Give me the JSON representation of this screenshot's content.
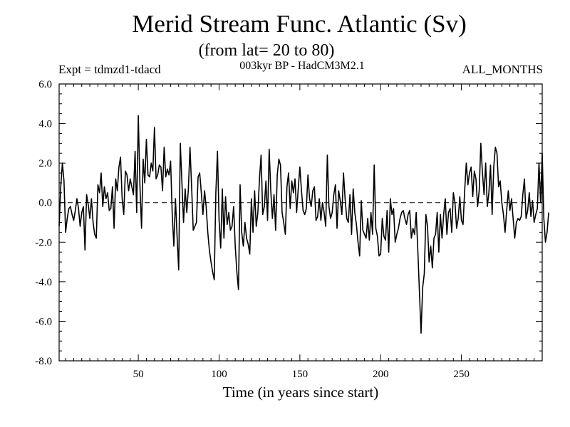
{
  "header": {
    "title": "Merid Stream Func. Atlantic (Sv)",
    "subtitle": "(from lat= 20 to 80)",
    "experiment": "Expt = tdmzd1-tdacd",
    "model": "003kyr BP - HadCM3M2.1",
    "months": "ALL_MONTHS"
  },
  "chart_data": {
    "type": "line",
    "title": "Merid Stream Func. Atlantic (Sv)",
    "xlabel": "Time (in years since start)",
    "ylabel": "",
    "xlim": [
      1,
      300
    ],
    "ylim": [
      -8,
      6
    ],
    "x_ticks": [
      50,
      100,
      150,
      200,
      250
    ],
    "y_ticks": [
      6,
      4,
      2,
      0,
      -2,
      -4,
      -6,
      -8
    ],
    "y_tick_labels": [
      "6.0",
      "4.0",
      "2.0",
      "0.0",
      "-2.0",
      "-4.0",
      "-6.0",
      "-8.0"
    ],
    "reference_line": {
      "y": 0,
      "style": "dashed"
    },
    "grid": false,
    "x_start": 1,
    "x_step": 1,
    "values": [
      -1.2,
      0.8,
      2.0,
      1.1,
      -1.5,
      -0.8,
      -0.3,
      -0.2,
      -0.6,
      -0.9,
      -0.4,
      0.2,
      -0.3,
      -1.2,
      -0.5,
      -0.2,
      -2.4,
      0.4,
      -0.1,
      -0.8,
      0.2,
      -1.0,
      -1.6,
      -1.8,
      0.9,
      0.5,
      1.5,
      -0.2,
      0.8,
      0.2,
      0.5,
      -0.4,
      -0.3,
      0.8,
      -1.3,
      1.2,
      0.6,
      1.8,
      2.3,
      0.2,
      -0.6,
      1.6,
      1.4,
      0.6,
      1.2,
      0.8,
      0.4,
      2.6,
      -0.5,
      4.4,
      0.9,
      -1.3,
      2.2,
      1.0,
      3.2,
      1.4,
      1.3,
      2.0,
      1.6,
      3.8,
      1.2,
      1.4,
      1.9,
      1.8,
      0.6,
      2.8,
      1.3,
      1.7,
      1.4,
      2.1,
      -0.6,
      -2.2,
      0.2,
      -1.7,
      -3.4,
      3.0,
      1.0,
      -1.0,
      0.7,
      -0.5,
      0.7,
      2.8,
      0.8,
      -1.4,
      -1.2,
      -1.0,
      1.3,
      1.5,
      0.5,
      -0.6,
      0.6,
      -0.2,
      -1.5,
      -2.4,
      -3.0,
      -3.5,
      -3.9,
      0.5,
      2.6,
      -0.9,
      -2.3,
      0.7,
      -1.8,
      0.3,
      -1.1,
      -0.5,
      -1.4,
      -1.2,
      -0.2,
      -2.2,
      -3.5,
      -4.4,
      0.9,
      -1.5,
      -2.2,
      -1.0,
      -1.8,
      -2.1,
      -2.6,
      0.2,
      -1.5,
      0.6,
      -1.2,
      -0.5,
      1.2,
      2.4,
      -0.6,
      -0.2,
      1.1,
      -0.9,
      2.7,
      0.6,
      -0.8,
      0.4,
      -1.4,
      1.4,
      2.2,
      1.9,
      -0.5,
      -1.0,
      -1.6,
      0.8,
      1.5,
      -0.3,
      1.1,
      0.5,
      1.2,
      -0.5,
      0.7,
      1.8,
      0.6,
      -0.4,
      -0.6,
      -0.3,
      1.4,
      0.2,
      -0.2,
      0.6,
      0.8,
      -0.9,
      -0.7,
      0.2,
      -0.9,
      0.0,
      -0.5,
      -1.2,
      2.4,
      -0.2,
      -0.8,
      -0.5,
      0.4,
      0.9,
      -1.3,
      0.6,
      0.1,
      -0.6,
      1.5,
      0.2,
      -0.8,
      -1.0,
      0.4,
      -1.6,
      0.7,
      -0.5,
      -1.1,
      -2.0,
      -2.7,
      0.1,
      -1.4,
      -1.6,
      -1.8,
      -0.8,
      -1.9,
      -0.5,
      -1.6,
      1.9,
      -1.3,
      -1.7,
      -2.7,
      -2.6,
      -0.8,
      -1.7,
      -1.9,
      -0.4,
      -2.5,
      0.2,
      -0.6,
      -0.3,
      -2.0,
      -1.6,
      -1.3,
      -0.8,
      -0.5,
      -0.4,
      -0.8,
      -1.1,
      -0.6,
      -0.4,
      -1.8,
      -1.3,
      -1.6,
      -0.5,
      -2.4,
      -4.5,
      -6.6,
      -4.3,
      -3.6,
      -0.6,
      -1.2,
      -3.0,
      -2.2,
      -3.3,
      -1.8,
      -1.6,
      -0.5,
      -2.5,
      -0.6,
      -1.8,
      -0.6,
      0.2,
      -1.6,
      -0.5,
      -0.3,
      -1.5,
      0.5,
      0.0,
      -1.3,
      -0.8,
      0.3,
      -0.9,
      -1.1,
      0.6,
      2.0,
      0.9,
      1.5,
      1.8,
      0.3,
      1.6,
      1.2,
      -0.2,
      0.6,
      3.0,
      1.5,
      0.4,
      2.0,
      -0.2,
      0.5,
      1.9,
      -0.6,
      1.8,
      2.8,
      2.5,
      0.8,
      1.1,
      0.0,
      -0.6,
      -1.5,
      -0.4,
      0.6,
      -0.4,
      0.2,
      -0.8,
      -1.8,
      -1.0,
      -0.8,
      -0.9,
      -0.7,
      0.4,
      1.2,
      -0.8,
      -0.4,
      0.5,
      -0.7,
      0.1,
      -1.0,
      -0.6,
      -0.3,
      2.0,
      0.0,
      2.5,
      -0.8,
      -2.0,
      -1.5,
      -0.5
    ]
  }
}
